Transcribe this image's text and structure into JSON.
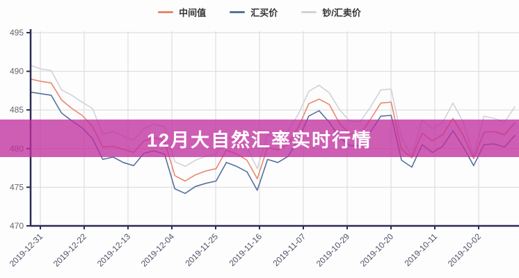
{
  "banner": {
    "title": "12月大自然汇率实时行情",
    "bg_color": "#C0309F",
    "bg_opacity": 0.78,
    "text_color": "#FFFFFF"
  },
  "legend": {
    "items": [
      {
        "key": "mid-rate",
        "label": "中间值",
        "color": "#E8876B"
      },
      {
        "key": "buy-rate",
        "label": "汇买价",
        "color": "#53719E"
      },
      {
        "key": "sell-rate",
        "label": "钞/汇卖价",
        "color": "#CFD2D8"
      }
    ]
  },
  "chart_data": {
    "type": "line",
    "title": "12月大自然汇率实时行情",
    "xlabel": "",
    "ylabel": "",
    "ylim": [
      470,
      495
    ],
    "y_ticks": [
      495,
      490,
      485,
      480,
      475,
      470
    ],
    "grid": true,
    "legend_position": "top",
    "x_labels": [
      "2019-12-31",
      "2019-12-22",
      "2019-12-13",
      "2019-12-04",
      "2019-11-25",
      "2019-11-16",
      "2019-11-07",
      "2019-10-29",
      "2019-10-20",
      "2019-10-11",
      "2019-10-02"
    ],
    "series": [
      {
        "key": "mid-rate",
        "name": "中间值",
        "color": "#E8876B",
        "values": [
          489.0,
          488.7,
          488.5,
          486.3,
          485.2,
          484.3,
          482.9,
          480.2,
          480.3,
          479.9,
          479.5,
          481.0,
          481.4,
          481.0,
          476.5,
          475.8,
          476.6,
          477.1,
          477.4,
          479.8,
          479.3,
          478.5,
          476.1,
          480.2,
          479.8,
          480.6,
          482.8,
          485.8,
          486.4,
          485.7,
          483.2,
          481.9,
          481.9,
          483.8,
          485.9,
          486.0,
          479.9,
          478.8,
          482.0,
          481.0,
          481.8,
          483.9,
          481.7,
          478.7,
          482.1,
          482.2,
          481.8,
          483.3
        ]
      },
      {
        "key": "buy-rate",
        "name": "汇买价",
        "color": "#53719E",
        "values": [
          487.3,
          487.1,
          486.9,
          484.6,
          483.6,
          482.7,
          481.3,
          478.6,
          478.9,
          478.2,
          477.8,
          479.4,
          479.7,
          479.3,
          474.8,
          474.2,
          475.1,
          475.5,
          475.8,
          478.2,
          477.7,
          477.0,
          474.6,
          478.6,
          478.2,
          479.0,
          481.2,
          484.2,
          484.9,
          483.4,
          481.4,
          480.4,
          480.4,
          482.2,
          484.2,
          484.3,
          478.5,
          477.6,
          480.5,
          479.5,
          480.3,
          482.3,
          480.2,
          477.8,
          480.5,
          480.6,
          480.2,
          481.7
        ]
      },
      {
        "key": "sell-rate",
        "name": "钞/汇卖价",
        "color": "#CFD2D8",
        "values": [
          490.8,
          490.3,
          490.1,
          487.6,
          486.9,
          486.0,
          485.2,
          481.9,
          482.2,
          481.6,
          481.1,
          482.6,
          483.2,
          482.8,
          478.3,
          477.7,
          478.5,
          479.0,
          479.3,
          481.5,
          481.0,
          480.2,
          477.4,
          481.8,
          481.4,
          482.3,
          484.5,
          487.4,
          488.2,
          487.2,
          485.0,
          483.5,
          483.5,
          485.4,
          487.6,
          487.7,
          481.4,
          479.0,
          483.7,
          482.6,
          483.4,
          485.9,
          483.4,
          479.0,
          484.2,
          483.9,
          483.4,
          485.4
        ]
      }
    ],
    "colors": {
      "axis": "#2B2B55",
      "grid": "#D8D8D8",
      "y_tick_label": "#666666",
      "x_tick_label": "#4D5166"
    }
  }
}
